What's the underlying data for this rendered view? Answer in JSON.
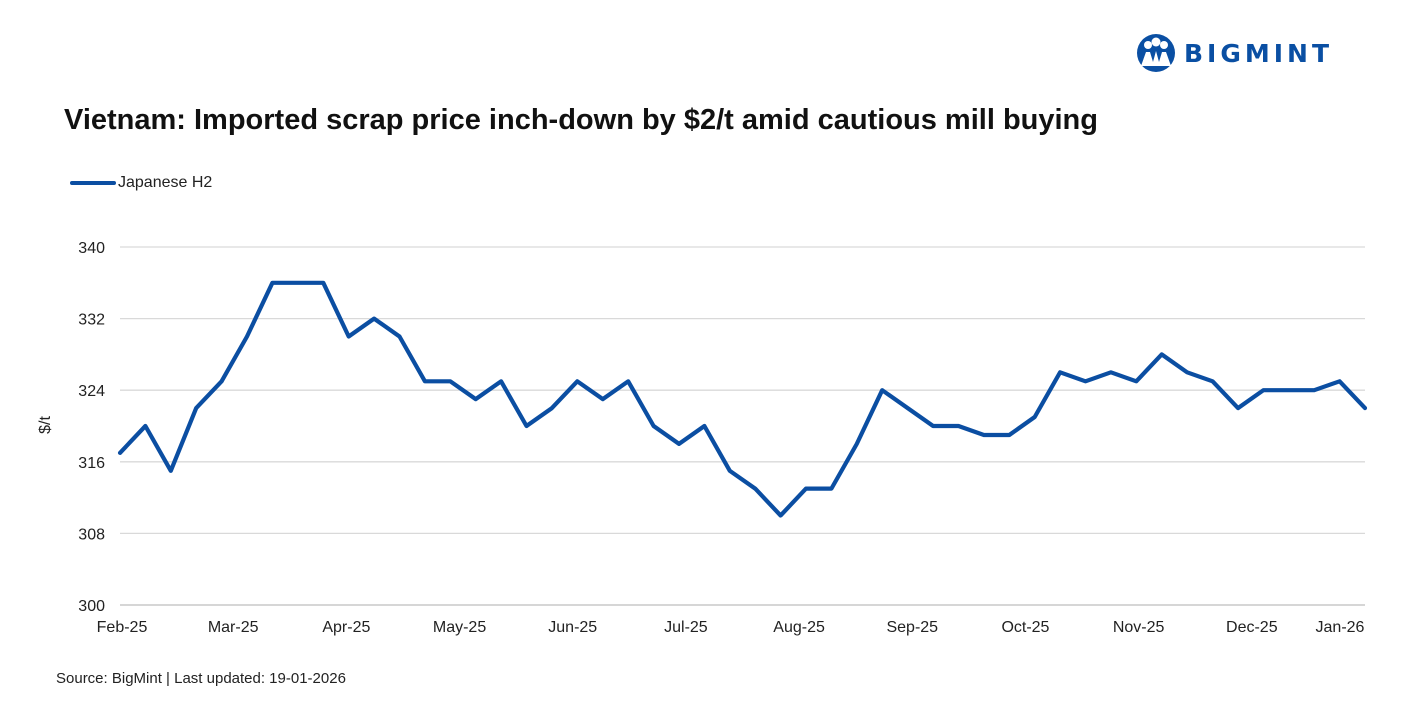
{
  "brand": {
    "name": "BIGMINT",
    "color": "#0a4fa3"
  },
  "source_note": "Source: BigMint | Last updated: 19-01-2026",
  "chart_data": {
    "type": "line",
    "title": "Vietnam: Imported scrap price inch-down by $2/t amid cautious mill buying",
    "ylabel": "$/t",
    "xlabel": "",
    "ylim": [
      300,
      340
    ],
    "yticks": [
      300,
      308,
      316,
      324,
      332,
      340
    ],
    "grid": true,
    "legend_position": "top-left",
    "x_tick_labels": [
      "Feb-25",
      "Mar-25",
      "Apr-25",
      "May-25",
      "Jun-25",
      "Jul-25",
      "Aug-25",
      "Sep-25",
      "Oct-25",
      "Nov-25",
      "Dec-25",
      "Jan-26"
    ],
    "series": [
      {
        "name": "Japanese H2",
        "color": "#0b4ea2",
        "values": [
          317,
          320,
          315,
          322,
          325,
          330,
          336,
          336,
          336,
          330,
          332,
          330,
          325,
          325,
          323,
          325,
          320,
          322,
          325,
          323,
          325,
          320,
          318,
          320,
          315,
          313,
          310,
          313,
          313,
          318,
          324,
          322,
          320,
          320,
          319,
          319,
          321,
          326,
          325,
          326,
          325,
          328,
          326,
          325,
          322,
          324,
          324,
          324,
          325,
          322
        ]
      }
    ]
  }
}
